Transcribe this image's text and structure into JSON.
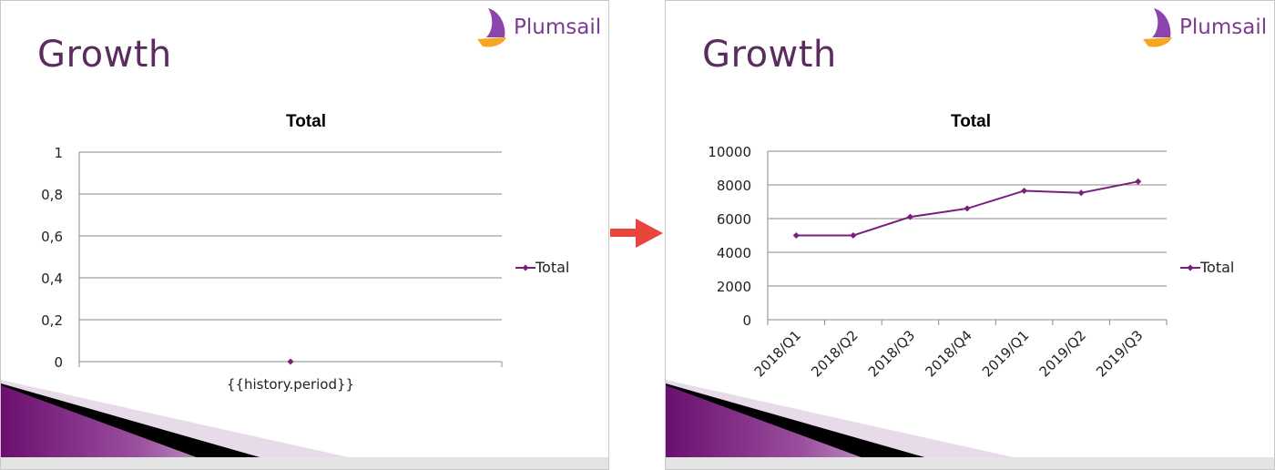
{
  "left_slide": {
    "title": "Growth",
    "logo_text": "Plumsail"
  },
  "right_slide": {
    "title": "Growth",
    "logo_text": "Plumsail"
  },
  "colors": {
    "series": "#7a1f7c",
    "title_text": "#5a2d5e",
    "logo_purple": "#7b3c8f",
    "logo_orange": "#f5a623",
    "arrow": "#e8453c"
  },
  "chart_data": [
    {
      "type": "line",
      "title": "Total",
      "categories": [
        "{{history.period}}"
      ],
      "y_tick_labels": [
        "0",
        "0,2",
        "0,4",
        "0,6",
        "0,8",
        "1"
      ],
      "ylim": [
        0,
        1
      ],
      "series": [
        {
          "name": "Total",
          "values": [
            0
          ]
        }
      ],
      "legend": "right",
      "grid": true
    },
    {
      "type": "line",
      "title": "Total",
      "categories": [
        "2018/Q1",
        "2018/Q2",
        "2018/Q3",
        "2018/Q4",
        "2019/Q1",
        "2019/Q2",
        "2019/Q3"
      ],
      "y_tick_labels": [
        "0",
        "2000",
        "4000",
        "6000",
        "8000",
        "10000"
      ],
      "ylim": [
        0,
        10000
      ],
      "series": [
        {
          "name": "Total",
          "values": [
            5000,
            5000,
            6100,
            6600,
            7650,
            7530,
            8200
          ]
        }
      ],
      "legend": "right",
      "grid": true
    }
  ]
}
